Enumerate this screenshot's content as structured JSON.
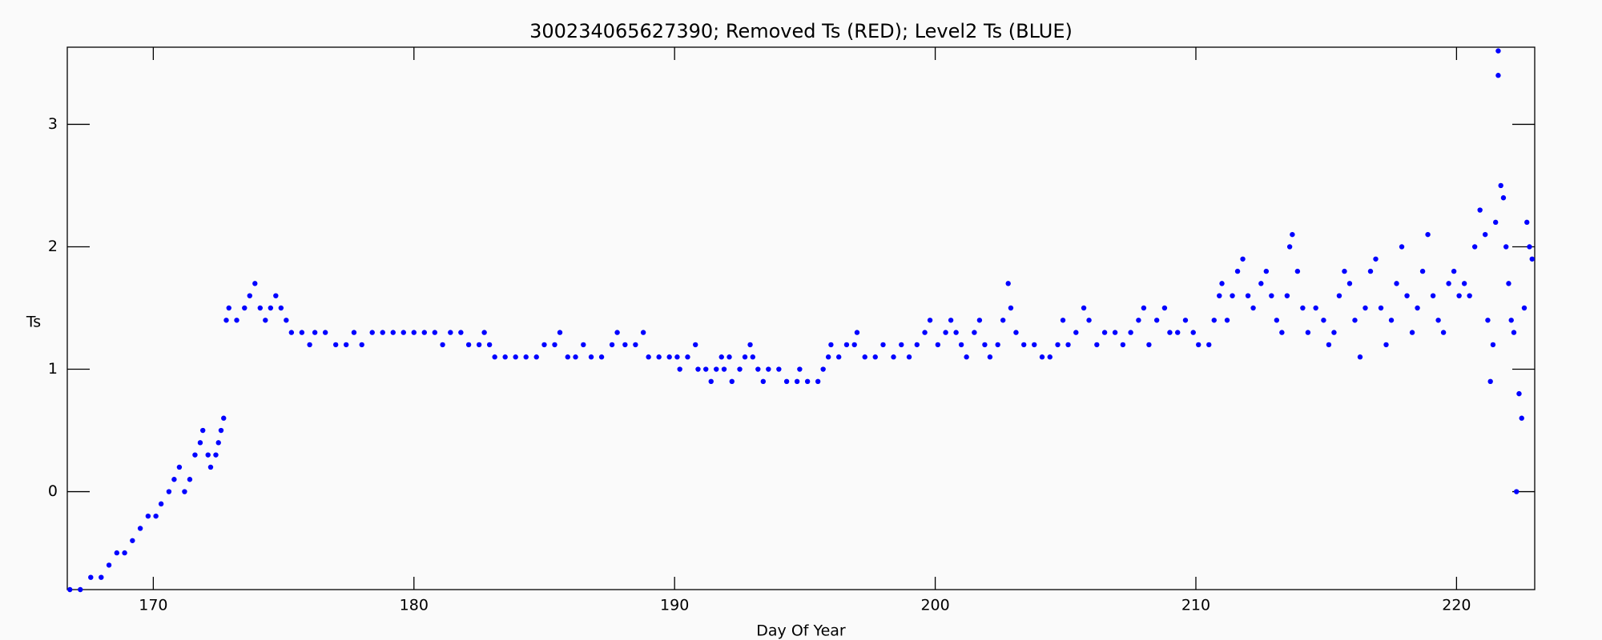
{
  "chart_data": {
    "type": "scatter",
    "title": "300234065627390; Removed Ts (RED); Level2 Ts (BLUE)",
    "x_label": "Day Of Year",
    "y_label": "Ts",
    "color": "#0000ff",
    "xlim": [
      166.7,
      223.0
    ],
    "ylim": [
      -0.8,
      3.63
    ],
    "xticks": [
      170,
      180,
      190,
      200,
      210,
      220
    ],
    "yticks": [
      0,
      1,
      2,
      3
    ],
    "x": [
      166.8,
      167.2,
      167.6,
      168.0,
      168.3,
      168.6,
      168.9,
      169.2,
      169.5,
      169.8,
      170.1,
      170.3,
      170.6,
      170.8,
      171.0,
      171.2,
      171.4,
      171.6,
      171.8,
      171.9,
      172.1,
      172.2,
      172.4,
      172.5,
      172.6,
      172.7,
      172.8,
      172.9,
      173.2,
      173.5,
      173.7,
      173.9,
      174.1,
      174.3,
      174.5,
      174.7,
      174.9,
      175.1,
      175.3,
      175.7,
      176.0,
      176.2,
      176.6,
      177.0,
      177.4,
      177.7,
      178.0,
      178.4,
      178.8,
      179.2,
      179.6,
      180.0,
      180.4,
      180.8,
      181.1,
      181.4,
      181.8,
      182.1,
      182.5,
      182.7,
      182.9,
      183.1,
      183.5,
      183.9,
      184.3,
      184.7,
      185.0,
      185.4,
      185.6,
      185.9,
      186.2,
      186.5,
      186.8,
      187.2,
      187.6,
      187.8,
      188.1,
      188.5,
      188.8,
      189.0,
      189.4,
      189.8,
      190.1,
      190.2,
      190.5,
      190.8,
      190.9,
      191.2,
      191.4,
      191.6,
      191.8,
      191.9,
      192.1,
      192.2,
      192.5,
      192.7,
      192.9,
      193.0,
      193.2,
      193.4,
      193.6,
      194.0,
      194.3,
      194.7,
      194.8,
      195.1,
      195.5,
      195.7,
      195.9,
      196.0,
      196.3,
      196.6,
      196.9,
      197.0,
      197.3,
      197.7,
      198.0,
      198.4,
      198.7,
      199.0,
      199.3,
      199.6,
      199.8,
      200.1,
      200.4,
      200.6,
      200.8,
      201.0,
      201.2,
      201.5,
      201.7,
      201.9,
      202.1,
      202.4,
      202.6,
      202.8,
      202.9,
      203.1,
      203.4,
      203.8,
      204.1,
      204.4,
      204.7,
      204.9,
      205.1,
      205.4,
      205.7,
      205.9,
      206.2,
      206.5,
      206.9,
      207.2,
      207.5,
      207.8,
      208.0,
      208.2,
      208.5,
      208.8,
      209.0,
      209.3,
      209.6,
      209.9,
      210.1,
      210.5,
      210.7,
      210.9,
      211.0,
      211.2,
      211.4,
      211.6,
      211.8,
      212.0,
      212.2,
      212.5,
      212.7,
      212.9,
      213.1,
      213.3,
      213.5,
      213.6,
      213.7,
      213.9,
      214.1,
      214.3,
      214.6,
      214.9,
      215.1,
      215.3,
      215.5,
      215.7,
      215.9,
      216.1,
      216.3,
      216.5,
      216.7,
      216.9,
      217.1,
      217.3,
      217.5,
      217.7,
      217.9,
      218.1,
      218.3,
      218.5,
      218.7,
      218.9,
      219.1,
      219.3,
      219.5,
      219.7,
      219.9,
      220.1,
      220.3,
      220.5,
      220.7,
      220.9,
      221.1,
      221.2,
      221.3,
      221.4,
      221.5,
      221.6,
      221.6,
      221.7,
      221.8,
      221.9,
      222.0,
      222.1,
      222.2,
      222.3,
      222.4,
      222.5,
      222.6,
      222.7,
      222.8,
      222.9
    ],
    "values": [
      -0.8,
      -0.8,
      -0.7,
      -0.7,
      -0.6,
      -0.5,
      -0.5,
      -0.4,
      -0.3,
      -0.2,
      -0.2,
      -0.1,
      0,
      0.1,
      0.2,
      0,
      0.1,
      0.3,
      0.4,
      0.5,
      0.3,
      0.2,
      0.3,
      0.4,
      0.5,
      0.6,
      1.4,
      1.5,
      1.4,
      1.5,
      1.6,
      1.7,
      1.5,
      1.4,
      1.5,
      1.6,
      1.5,
      1.4,
      1.3,
      1.3,
      1.2,
      1.3,
      1.3,
      1.2,
      1.2,
      1.3,
      1.2,
      1.3,
      1.3,
      1.3,
      1.3,
      1.3,
      1.3,
      1.3,
      1.2,
      1.3,
      1.3,
      1.2,
      1.2,
      1.3,
      1.2,
      1.1,
      1.1,
      1.1,
      1.1,
      1.1,
      1.2,
      1.2,
      1.3,
      1.1,
      1.1,
      1.2,
      1.1,
      1.1,
      1.2,
      1.3,
      1.2,
      1.2,
      1.3,
      1.1,
      1.1,
      1.1,
      1.1,
      1.0,
      1.1,
      1.2,
      1.0,
      1.0,
      0.9,
      1.0,
      1.1,
      1.0,
      1.1,
      0.9,
      1.0,
      1.1,
      1.2,
      1.1,
      1.0,
      0.9,
      1.0,
      1.0,
      0.9,
      0.9,
      1.0,
      0.9,
      0.9,
      1.0,
      1.1,
      1.2,
      1.1,
      1.2,
      1.2,
      1.3,
      1.1,
      1.1,
      1.2,
      1.1,
      1.2,
      1.1,
      1.2,
      1.3,
      1.4,
      1.2,
      1.3,
      1.4,
      1.3,
      1.2,
      1.1,
      1.3,
      1.4,
      1.2,
      1.1,
      1.2,
      1.4,
      1.7,
      1.5,
      1.3,
      1.2,
      1.2,
      1.1,
      1.1,
      1.2,
      1.4,
      1.2,
      1.3,
      1.5,
      1.4,
      1.2,
      1.3,
      1.3,
      1.2,
      1.3,
      1.4,
      1.5,
      1.2,
      1.4,
      1.5,
      1.3,
      1.3,
      1.4,
      1.3,
      1.2,
      1.2,
      1.4,
      1.6,
      1.7,
      1.4,
      1.6,
      1.8,
      1.9,
      1.6,
      1.5,
      1.7,
      1.8,
      1.6,
      1.4,
      1.3,
      1.6,
      2.0,
      2.1,
      1.8,
      1.5,
      1.3,
      1.5,
      1.4,
      1.2,
      1.3,
      1.6,
      1.8,
      1.7,
      1.4,
      1.1,
      1.5,
      1.8,
      1.9,
      1.5,
      1.2,
      1.4,
      1.7,
      2.0,
      1.6,
      1.3,
      1.5,
      1.8,
      2.1,
      1.6,
      1.4,
      1.3,
      1.7,
      1.8,
      1.6,
      1.7,
      1.6,
      2.0,
      2.3,
      2.1,
      1.4,
      0.9,
      1.2,
      2.2,
      3.4,
      3.6,
      2.5,
      2.4,
      2.0,
      1.7,
      1.4,
      1.3,
      0.0,
      0.8,
      0.6,
      1.5,
      2.2,
      2.0,
      1.9
    ]
  }
}
